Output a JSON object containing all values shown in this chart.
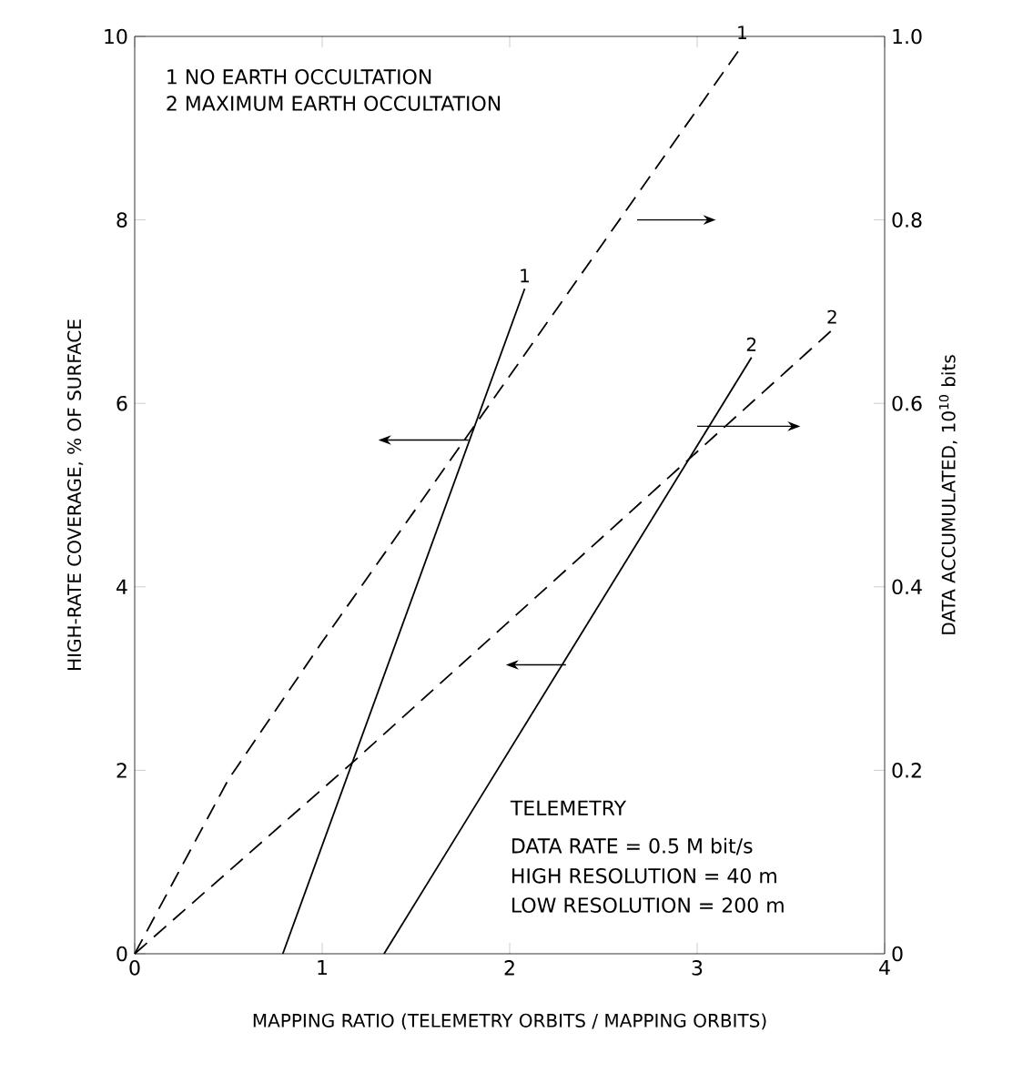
{
  "chart_data": {
    "type": "line",
    "xlabel": "MAPPING RATIO (TELEMETRY ORBITS / MAPPING ORBITS)",
    "ylabel": "HIGH-RATE COVERAGE, % OF SURFACE",
    "y2label": "DATA ACCUMULATED, 10$^{10}$ bits",
    "xlim": [
      0,
      4
    ],
    "xticks": [
      0,
      1,
      2,
      3,
      4
    ],
    "ylim": [
      0,
      10
    ],
    "yticks": [
      0,
      2,
      4,
      6,
      8,
      10
    ],
    "y2lim": [
      0,
      1
    ],
    "y2ticks": [
      0,
      0.2,
      0.4,
      0.6,
      0.8,
      {
        "value": 1,
        "label": "1.0"
      }
    ],
    "grid": false,
    "annotations": [
      "1  NO EARTH OCCULTATION",
      "2  MAXIMUM EARTH OCCULTATION",
      "TELEMETRY",
      "DATA RATE = 0.5 M bit/s",
      "HIGH RESOLUTION = 40 m",
      "LOW RESOLUTION = 200 m"
    ],
    "series": [
      {
        "name": "1",
        "color": "#000000",
        "line_style": "solid",
        "x": [
          0.79,
          2.08
        ],
        "values": [
          0,
          7.25
        ]
      },
      {
        "name": "2",
        "color": "#000000",
        "line_style": "solid",
        "x": [
          1.33,
          3.29
        ],
        "values": [
          0,
          6.5
        ]
      },
      {
        "name": "1",
        "color": "#000000",
        "line_style": "dashed",
        "axis": "y2",
        "x": [
          0,
          0.5,
          1,
          2,
          3.24
        ],
        "values": [
          0,
          0.19,
          0.34,
          0.63,
          0.99
        ]
      },
      {
        "name": "2",
        "color": "#000000",
        "line_style": "dashed",
        "axis": "y2",
        "x": [
          0,
          1.17,
          3.72
        ],
        "values": [
          0,
          0.21,
          0.68
        ]
      }
    ]
  }
}
